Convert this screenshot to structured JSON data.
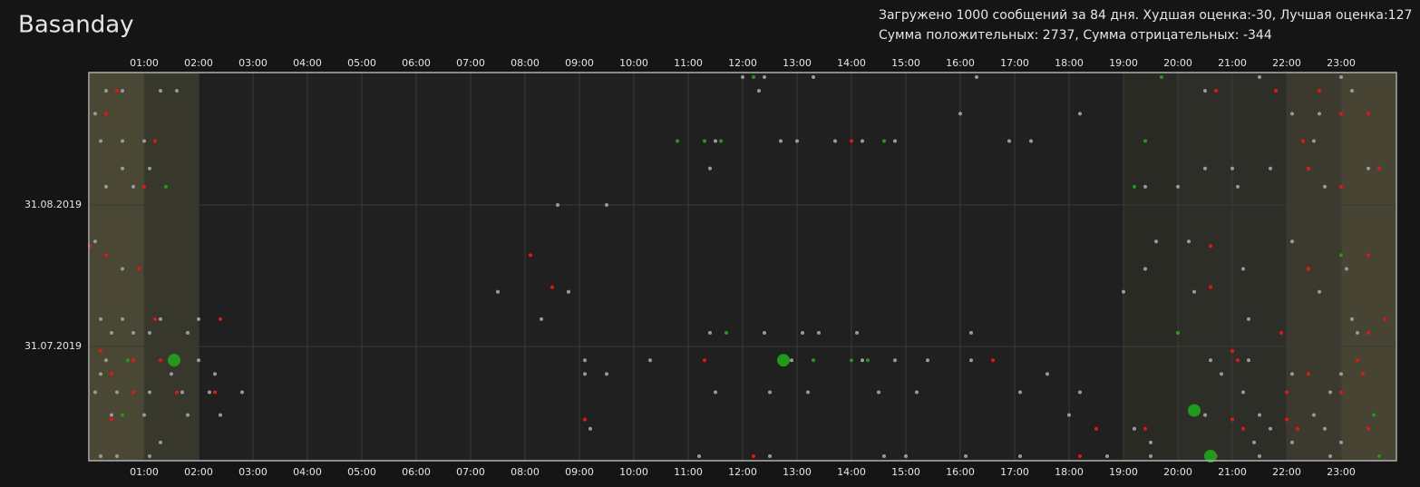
{
  "chart_data": {
    "type": "scatter",
    "title": "Basanday",
    "info_lines": [
      "Загружено 1000 сообщений за 84 дня. Худшая оценка:-30, Лучшая оценка:127",
      "Сумма положительных: 2737, Сумма отрицательных: -344"
    ],
    "xlim": [
      0,
      24
    ],
    "xticks": [
      {
        "value": 1,
        "label": "01:00"
      },
      {
        "value": 2,
        "label": "02:00"
      },
      {
        "value": 3,
        "label": "03:00"
      },
      {
        "value": 4,
        "label": "04:00"
      },
      {
        "value": 5,
        "label": "05:00"
      },
      {
        "value": 6,
        "label": "06:00"
      },
      {
        "value": 7,
        "label": "07:00"
      },
      {
        "value": 8,
        "label": "08:00"
      },
      {
        "value": 9,
        "label": "09:00"
      },
      {
        "value": 10,
        "label": "10:00"
      },
      {
        "value": 11,
        "label": "11:00"
      },
      {
        "value": 12,
        "label": "12:00"
      },
      {
        "value": 13,
        "label": "13:00"
      },
      {
        "value": 14,
        "label": "14:00"
      },
      {
        "value": 15,
        "label": "15:00"
      },
      {
        "value": 16,
        "label": "16:00"
      },
      {
        "value": 17,
        "label": "17:00"
      },
      {
        "value": 18,
        "label": "18:00"
      },
      {
        "value": 19,
        "label": "19:00"
      },
      {
        "value": 20,
        "label": "20:00"
      },
      {
        "value": 21,
        "label": "21:00"
      },
      {
        "value": 22,
        "label": "22:00"
      },
      {
        "value": 23,
        "label": "23:00"
      }
    ],
    "ylim": [
      "2019-07-06",
      "2019-09-29"
    ],
    "yticks": [
      {
        "value": "2019-07-31",
        "label": "31.07.2019"
      },
      {
        "value": "2019-08-31",
        "label": "31.08.2019"
      }
    ],
    "grid": true,
    "series": [
      {
        "color": "#9a9a9a",
        "marker_size": 2,
        "x": [
          0.3,
          0.6,
          1.3,
          1.6,
          12.3,
          20.5,
          23.2,
          12.0,
          12.4,
          13.3,
          16.3,
          21.5,
          23.0,
          0.1,
          16.0,
          18.2,
          22.1,
          22.6,
          0.2,
          0.6,
          1.0,
          11.5,
          12.7,
          13.0,
          13.7,
          14.2,
          14.8,
          16.9,
          17.3,
          22.5,
          0.6,
          1.1,
          11.4,
          20.5,
          21.0,
          21.7,
          22.4,
          23.5,
          0.3,
          0.8,
          19.4,
          20.0,
          21.1,
          22.7,
          8.6,
          9.5,
          0.1,
          19.6,
          20.2,
          22.1,
          0.6,
          19.4,
          21.2,
          22.4,
          23.1,
          7.5,
          8.8,
          19.0,
          20.3,
          22.6,
          0.2,
          0.6,
          1.3,
          2.0,
          8.3,
          21.3,
          23.2,
          0.4,
          0.8,
          1.1,
          1.8,
          11.4,
          12.4,
          13.1,
          13.4,
          14.1,
          16.2,
          20.0,
          23.3,
          0.3,
          2.0,
          9.1,
          10.3,
          12.9,
          14.2,
          14.8,
          15.4,
          16.2,
          20.6,
          21.3,
          0.2,
          1.5,
          2.3,
          9.1,
          9.5,
          17.6,
          20.8,
          22.1,
          23.0,
          0.1,
          0.5,
          1.1,
          1.7,
          2.2,
          2.8,
          11.5,
          12.5,
          13.2,
          14.5,
          15.2,
          17.1,
          18.2,
          21.2,
          22.8,
          0.4,
          1.0,
          1.8,
          2.4,
          18.0,
          20.5,
          21.5,
          22.5,
          9.2,
          19.2,
          21.7,
          22.7,
          1.3,
          19.5,
          21.4,
          22.1,
          23.0,
          0.2,
          0.5,
          1.1,
          11.2,
          12.5,
          14.6,
          15.0,
          16.1,
          17.1,
          18.7,
          19.5,
          21.5,
          22.8
        ],
        "y": [
          "2019-09-25",
          "2019-09-25",
          "2019-09-25",
          "2019-09-25",
          "2019-09-25",
          "2019-09-25",
          "2019-09-25",
          "2019-09-28",
          "2019-09-28",
          "2019-09-28",
          "2019-09-28",
          "2019-09-28",
          "2019-09-28",
          "2019-09-20",
          "2019-09-20",
          "2019-09-20",
          "2019-09-20",
          "2019-09-20",
          "2019-09-14",
          "2019-09-14",
          "2019-09-14",
          "2019-09-14",
          "2019-09-14",
          "2019-09-14",
          "2019-09-14",
          "2019-09-14",
          "2019-09-14",
          "2019-09-14",
          "2019-09-14",
          "2019-09-14",
          "2019-09-08",
          "2019-09-08",
          "2019-09-08",
          "2019-09-08",
          "2019-09-08",
          "2019-09-08",
          "2019-09-08",
          "2019-09-08",
          "2019-09-04",
          "2019-09-04",
          "2019-09-04",
          "2019-09-04",
          "2019-09-04",
          "2019-09-04",
          "2019-08-31",
          "2019-08-31",
          "2019-08-23",
          "2019-08-23",
          "2019-08-23",
          "2019-08-23",
          "2019-08-17",
          "2019-08-17",
          "2019-08-17",
          "2019-08-17",
          "2019-08-17",
          "2019-08-12",
          "2019-08-12",
          "2019-08-12",
          "2019-08-12",
          "2019-08-12",
          "2019-08-06",
          "2019-08-06",
          "2019-08-06",
          "2019-08-06",
          "2019-08-06",
          "2019-08-06",
          "2019-08-06",
          "2019-08-03",
          "2019-08-03",
          "2019-08-03",
          "2019-08-03",
          "2019-08-03",
          "2019-08-03",
          "2019-08-03",
          "2019-08-03",
          "2019-08-03",
          "2019-08-03",
          "2019-08-03",
          "2019-08-03",
          "2019-07-28",
          "2019-07-28",
          "2019-07-28",
          "2019-07-28",
          "2019-07-28",
          "2019-07-28",
          "2019-07-28",
          "2019-07-28",
          "2019-07-28",
          "2019-07-28",
          "2019-07-28",
          "2019-07-25",
          "2019-07-25",
          "2019-07-25",
          "2019-07-25",
          "2019-07-25",
          "2019-07-25",
          "2019-07-25",
          "2019-07-25",
          "2019-07-25",
          "2019-07-21",
          "2019-07-21",
          "2019-07-21",
          "2019-07-21",
          "2019-07-21",
          "2019-07-21",
          "2019-07-21",
          "2019-07-21",
          "2019-07-21",
          "2019-07-21",
          "2019-07-21",
          "2019-07-21",
          "2019-07-21",
          "2019-07-21",
          "2019-07-21",
          "2019-07-16",
          "2019-07-16",
          "2019-07-16",
          "2019-07-16",
          "2019-07-16",
          "2019-07-16",
          "2019-07-16",
          "2019-07-16",
          "2019-07-13",
          "2019-07-13",
          "2019-07-13",
          "2019-07-13",
          "2019-07-10",
          "2019-07-10",
          "2019-07-10",
          "2019-07-10",
          "2019-07-10",
          "2019-07-07",
          "2019-07-07",
          "2019-07-07",
          "2019-07-07",
          "2019-07-07",
          "2019-07-07",
          "2019-07-07",
          "2019-07-07",
          "2019-07-07",
          "2019-07-07",
          "2019-07-07",
          "2019-07-07",
          "2019-07-07"
        ]
      },
      {
        "color": "#e01818",
        "marker_size": 2,
        "x": [
          0.5,
          20.7,
          21.8,
          22.6,
          0.3,
          23.0,
          23.5,
          1.2,
          14.0,
          22.3,
          22.4,
          23.7,
          1.0,
          23.0,
          0.0,
          20.6,
          0.3,
          8.1,
          23.5,
          0.9,
          22.4,
          8.5,
          20.6,
          1.2,
          2.4,
          23.8,
          21.9,
          23.5,
          0.2,
          21.0,
          0.8,
          1.3,
          11.3,
          16.6,
          21.1,
          23.3,
          0.4,
          22.4,
          23.4,
          0.8,
          1.6,
          2.3,
          22.0,
          23.0,
          0.4,
          9.1,
          21.0,
          22.0,
          18.5,
          19.4,
          21.2,
          22.2,
          23.5,
          12.2,
          18.2,
          20.7
        ],
        "y": [
          "2019-09-25",
          "2019-09-25",
          "2019-09-25",
          "2019-09-25",
          "2019-09-20",
          "2019-09-20",
          "2019-09-20",
          "2019-09-14",
          "2019-09-14",
          "2019-09-14",
          "2019-09-08",
          "2019-09-08",
          "2019-09-04",
          "2019-09-04",
          "2019-08-22",
          "2019-08-22",
          "2019-08-20",
          "2019-08-20",
          "2019-08-20",
          "2019-08-17",
          "2019-08-17",
          "2019-08-13",
          "2019-08-13",
          "2019-08-06",
          "2019-08-06",
          "2019-08-06",
          "2019-08-03",
          "2019-08-03",
          "2019-07-30",
          "2019-07-30",
          "2019-07-28",
          "2019-07-28",
          "2019-07-28",
          "2019-07-28",
          "2019-07-28",
          "2019-07-28",
          "2019-07-25",
          "2019-07-25",
          "2019-07-25",
          "2019-07-21",
          "2019-07-21",
          "2019-07-21",
          "2019-07-21",
          "2019-07-21",
          "2019-07-15",
          "2019-07-15",
          "2019-07-15",
          "2019-07-15",
          "2019-07-13",
          "2019-07-13",
          "2019-07-13",
          "2019-07-13",
          "2019-07-13",
          "2019-07-07",
          "2019-07-07",
          "2019-07-07"
        ]
      },
      {
        "color": "#1f9a1f",
        "marker_size": 2,
        "x": [
          12.2,
          19.7,
          10.8,
          11.3,
          11.6,
          14.6,
          19.4,
          1.4,
          19.2,
          23.0,
          11.7,
          20.0,
          0.7,
          13.3,
          14.0,
          14.3,
          0.6,
          23.6,
          23.7
        ],
        "y": [
          "2019-09-28",
          "2019-09-28",
          "2019-09-14",
          "2019-09-14",
          "2019-09-14",
          "2019-09-14",
          "2019-09-14",
          "2019-09-04",
          "2019-09-04",
          "2019-08-20",
          "2019-08-03",
          "2019-08-03",
          "2019-07-28",
          "2019-07-28",
          "2019-07-28",
          "2019-07-28",
          "2019-07-16",
          "2019-07-16",
          "2019-07-07"
        ]
      },
      {
        "color": "#1f9a1f",
        "marker_size": 7,
        "x": [
          1.55,
          12.75,
          20.3,
          20.6
        ],
        "y": [
          "2019-07-28",
          "2019-07-28",
          "2019-07-17",
          "2019-07-07"
        ]
      }
    ]
  }
}
